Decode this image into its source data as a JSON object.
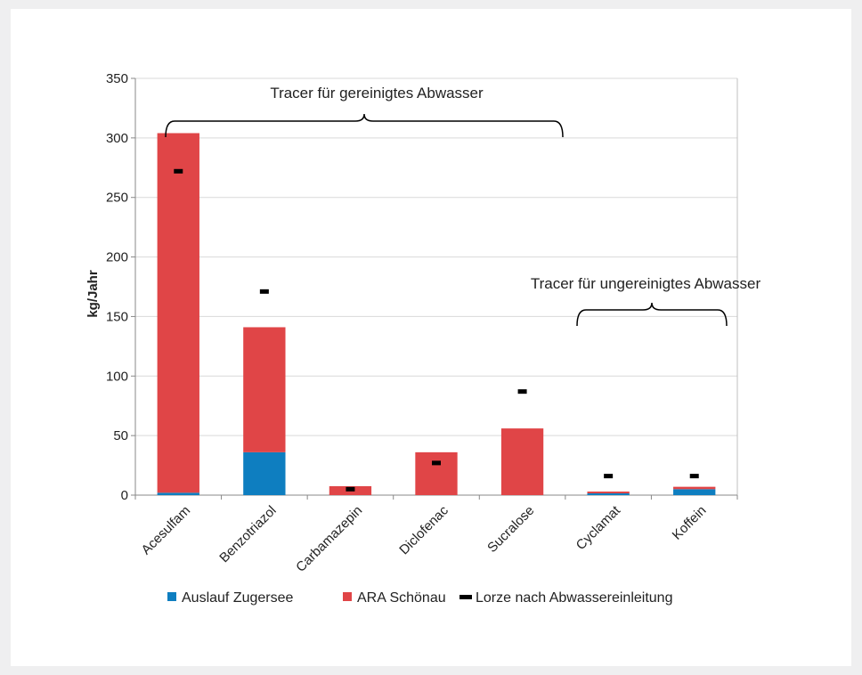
{
  "chart_data": {
    "type": "bar",
    "stacked": true,
    "title": "",
    "xlabel": "",
    "ylabel": "kg/Jahr",
    "ylim": [
      0,
      350
    ],
    "yticks": [
      0,
      50,
      100,
      150,
      200,
      250,
      300,
      350
    ],
    "grid": true,
    "legend_position": "bottom",
    "categories": [
      "Acesulfam",
      "Benzotriazol",
      "Carbamazepin",
      "Diclofenac",
      "Sucralose",
      "Cyclamat",
      "Koffein"
    ],
    "series": [
      {
        "name": "Auslauf Zugersee",
        "kind": "bar",
        "color": "#0e7ec0",
        "values": [
          2,
          36,
          0,
          0,
          0,
          1.5,
          5
        ]
      },
      {
        "name": "ARA Schönau",
        "kind": "bar",
        "color": "#e04547",
        "values": [
          302,
          105,
          7.5,
          36,
          56,
          1.5,
          2
        ]
      },
      {
        "name": "Lorze nach Abwassereinleitung",
        "kind": "marker",
        "color": "#000000",
        "values": [
          272,
          171,
          5,
          27,
          87,
          16,
          16
        ]
      }
    ],
    "annotations": [
      {
        "text": "Tracer für gereinigtes Abwasser",
        "brace_from": "Acesulfam",
        "brace_to": "Sucralose"
      },
      {
        "text": "Tracer für ungereinigtes Abwasser",
        "brace_from": "Cyclamat",
        "brace_to": "Koffein"
      }
    ]
  }
}
